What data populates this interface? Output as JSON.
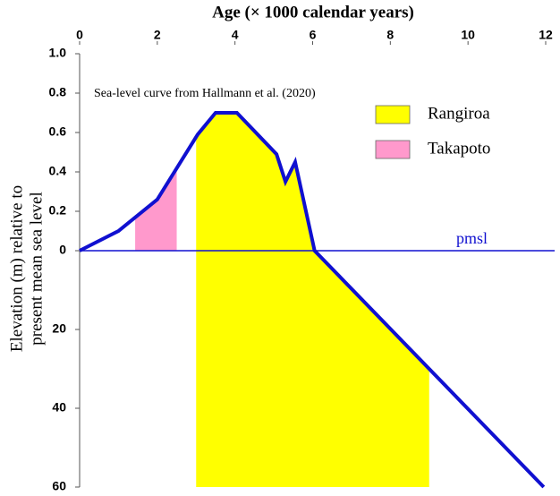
{
  "chart_data": {
    "type": "line",
    "title": "Age (× 1000 calendar years)",
    "ylabel": [
      "Elevation (m) relative to",
      "present mean sea level"
    ],
    "annotation": "Sea-level curve from Hallmann et al. (2020)",
    "baseline_label": "pmsl",
    "x": [
      0,
      1.0,
      2.0,
      3.04,
      3.5,
      4.05,
      5.07,
      5.3,
      5.55,
      6.05,
      9.0,
      11.95
    ],
    "values": [
      0,
      0.1,
      0.26,
      0.59,
      0.7,
      0.7,
      0.49,
      0.35,
      0.45,
      0,
      -30,
      -60
    ],
    "color": "#1010d0",
    "xlim": [
      0,
      12
    ],
    "xticks": [
      0,
      2,
      4,
      6,
      8,
      10,
      12
    ],
    "ylim": [
      -60,
      1.0
    ],
    "yticks": [
      {
        "value": 1.0,
        "label": "1.0"
      },
      0.8,
      0.6,
      0.4,
      0.2,
      0,
      {
        "value": -20,
        "label": "20"
      },
      {
        "value": -40,
        "label": "40"
      },
      {
        "value": -60,
        "label": "60"
      }
    ],
    "shaded": [
      {
        "name": "Rangiroa",
        "color": "#ffff00",
        "x": [
          3.0,
          9.0
        ]
      },
      {
        "name": "Takapoto",
        "color": "#ff99cc",
        "x": [
          1.43,
          2.5
        ]
      }
    ]
  }
}
